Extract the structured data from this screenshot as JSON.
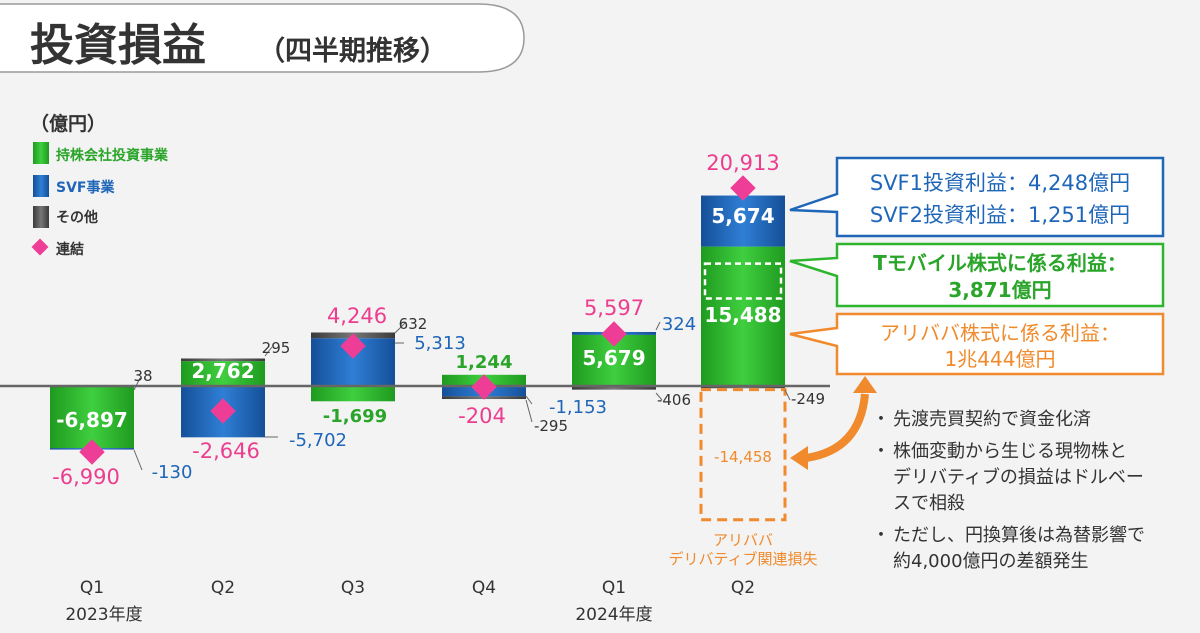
{
  "title": "投資損益",
  "title_sub": "（四半期推移）",
  "unit": "（億円）",
  "legend": [
    {
      "label": "持株会社投資事業",
      "color": "#2db52d"
    },
    {
      "label": "SVF事業",
      "color": "#1f66b8"
    },
    {
      "label": "その他",
      "color": "#555555"
    },
    {
      "label": "連結",
      "color": "#ee3d96"
    }
  ],
  "colors": {
    "holding": "#2db52d",
    "svf": "#1f66b8",
    "other": "#555555",
    "consolidated": "#ee3d96",
    "orange": "#f08a2c",
    "holding_text": "#2aa52a",
    "svf_text": "#1f66b8",
    "pink_text": "#ec3d8f"
  },
  "chart_data": {
    "type": "bar",
    "categories": [
      "Q1",
      "Q2",
      "Q3",
      "Q4",
      "Q1",
      "Q2"
    ],
    "fiscal_years": [
      "2023年度",
      "2024年度"
    ],
    "series": [
      {
        "name": "持株会社投資事業",
        "values": [
          -6897,
          2762,
          -1699,
          1244,
          5679,
          15488
        ]
      },
      {
        "name": "SVF事業",
        "values": [
          -130,
          -5702,
          5313,
          -1153,
          324,
          5674
        ]
      },
      {
        "name": "その他",
        "values": [
          38,
          295,
          632,
          -295,
          -406,
          -249
        ]
      },
      {
        "name": "連結",
        "values": [
          -6990,
          -2646,
          4246,
          -204,
          5597,
          20913
        ]
      }
    ],
    "extra_segments": {
      "tmobile_gain": 3871,
      "alibaba_derivative_loss": -14458
    },
    "labels": {
      "holding": [
        "-6,897",
        "2,762",
        "-1,699",
        "1,244",
        "5,679",
        "15,488"
      ],
      "svf": [
        "-130",
        "-5,702",
        "5,313",
        "-1,153",
        "324",
        "5,674"
      ],
      "other": [
        "38",
        "295",
        "632",
        "-295",
        "-406",
        "-249"
      ],
      "consolidated": [
        "-6,990",
        "-2,646",
        "4,246",
        "-204",
        "5,597",
        "20,913"
      ],
      "alibaba_loss": "-14,458"
    }
  },
  "callouts": {
    "svf_line1": "SVF1投資利益：4,248億円",
    "svf_line2": "SVF2投資利益：1,251億円",
    "tmobile_line1": "Tモバイル株式に係る利益：",
    "tmobile_line2": "3,871億円",
    "alibaba_line1": "アリババ株式に係る利益：",
    "alibaba_line2": "1兆444億円",
    "loss_label_line1": "アリババ",
    "loss_label_line2": "デリバティブ関連損失"
  },
  "notes": [
    {
      "bullet": "・",
      "lines": [
        "先渡売買契約で資金化済"
      ]
    },
    {
      "bullet": "・",
      "lines": [
        "株価変動から生じる現物株と",
        "デリバティブの損益はドルベー",
        "スで相殺"
      ]
    },
    {
      "bullet": "・",
      "lines": [
        "ただし、円換算後は為替影響で",
        "約4,000億円の差額発生"
      ]
    }
  ]
}
